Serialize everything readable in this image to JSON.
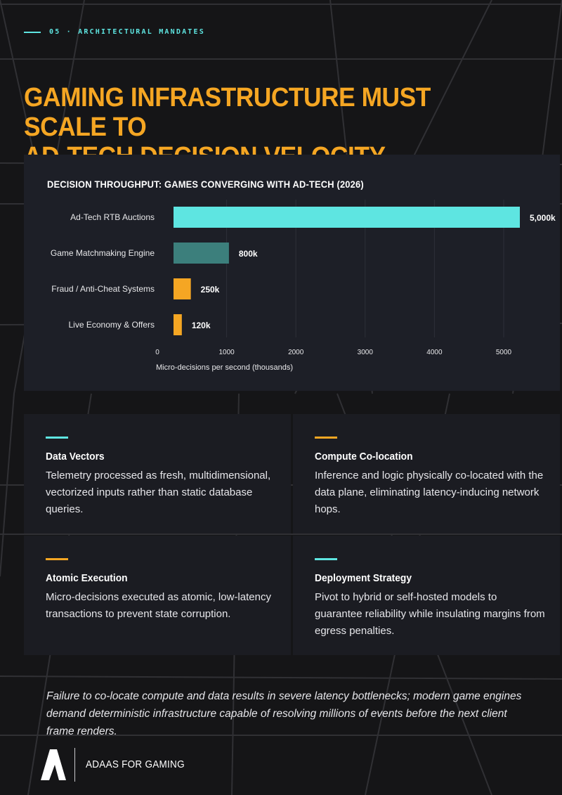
{
  "header": {
    "eyebrow": "05 · ARCHITECTURAL MANDATES",
    "title_line_1": "GAMING INFRASTRUCTURE MUST SCALE TO",
    "title_line_2": "AD-TECH DECISION VELOCITY"
  },
  "colors": {
    "background": "#151517",
    "accent_orange": "#f5a623",
    "accent_cyan": "#5ee5e1",
    "teal_bar": "#3c7f7c",
    "panel": "#1d1f27"
  },
  "chart_data": {
    "type": "bar",
    "orientation": "horizontal",
    "title": "DECISION THROUGHPUT: GAMES CONVERGING WITH AD-TECH (2026)",
    "categories": [
      "Ad-Tech RTB Auctions",
      "Game Matchmaking Engine",
      "Fraud / Anti-Cheat Systems",
      "Live Economy & Offers"
    ],
    "values": [
      5000,
      800,
      250,
      120
    ],
    "value_labels": [
      "5,000k",
      "800k",
      "250k",
      "120k"
    ],
    "bar_colors": [
      "#5ee5e1",
      "#3c7f7c",
      "#f5a623",
      "#f5a623"
    ],
    "xlabel": "Micro-decisions per second (thousands)",
    "ylabel": "",
    "xlim": [
      0,
      5200
    ],
    "x_ticks": [
      "0",
      "1000",
      "2000",
      "3000",
      "4000",
      "5000"
    ],
    "x_tick_values": [
      0,
      1000,
      2000,
      3000,
      4000,
      5000
    ],
    "grid": "vertical"
  },
  "cards": [
    {
      "title": "Data Vectors",
      "body": "Telemetry processed as fresh, multidimensional, vectorized inputs rather than static database queries.",
      "accent": "#5ee5e1"
    },
    {
      "title": "Compute Co-location",
      "body": "Inference and logic physically co-located with the data plane, eliminating latency-inducing network hops.",
      "accent": "#f5a623"
    },
    {
      "title": "Atomic Execution",
      "body": "Micro-decisions executed as atomic, low-latency transactions to prevent state corruption.",
      "accent": "#f5a623"
    },
    {
      "title": "Deployment Strategy",
      "body": "Pivot to hybrid or self-hosted models to guarantee reliability while insulating margins from egress penalties.",
      "accent": "#5ee5e1"
    }
  ],
  "quote": "Failure to co-locate compute and data results in severe latency bottlenecks; modern game engines demand deterministic infrastructure capable of resolving millions of events before the next client frame renders.",
  "footer": {
    "brand": "ADAAS FOR GAMING",
    "logo_icon": "stylized-a-logo-icon"
  }
}
